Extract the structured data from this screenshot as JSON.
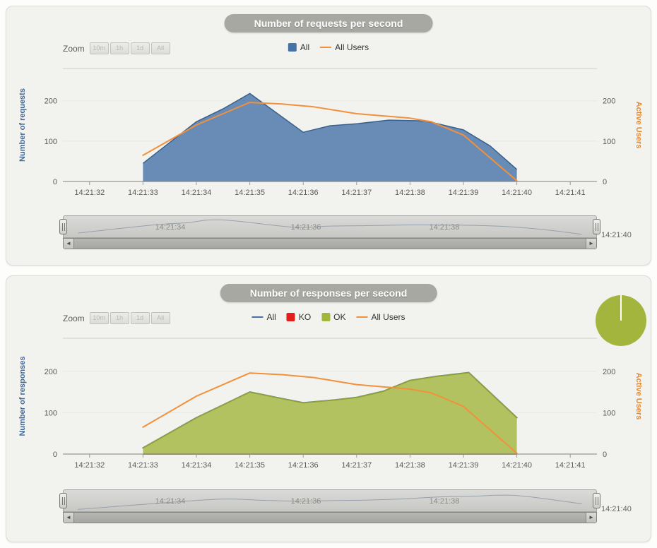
{
  "colors": {
    "accent_blue": "#4572a7",
    "accent_orange": "#f2903b",
    "accent_green": "#a3b53c",
    "accent_red": "#e31e1e",
    "panel_bg": "#f2f2ee",
    "title_pill_bg": "#a8a8a2",
    "nav_line": "#98a1ac"
  },
  "icons": {
    "scroll_left": "◄",
    "scroll_right": "►"
  },
  "zoom": {
    "label": "Zoom",
    "buttons": [
      "10m",
      "1h",
      "1d",
      "All"
    ]
  },
  "panels": [
    {
      "name": "requests",
      "navigator": {
        "labels": [
          "14:21:34",
          "14:21:36",
          "14:21:38"
        ],
        "right_label": "14:21:40"
      }
    },
    {
      "name": "responses",
      "navigator": {
        "labels": [
          "14:21:34",
          "14:21:36",
          "14:21:38"
        ],
        "right_label": "14:21:40"
      }
    }
  ],
  "chart_data": [
    {
      "type": "area",
      "title": "Number of requests per second",
      "ylabel_left": "Number of requests",
      "ylabel_right": "Active Users",
      "x_ticks": [
        "14:21:32",
        "14:21:33",
        "14:21:34",
        "14:21:35",
        "14:21:36",
        "14:21:37",
        "14:21:38",
        "14:21:39",
        "14:21:40",
        "14:21:41"
      ],
      "yticks": [
        0,
        100,
        200
      ],
      "ylim": [
        0,
        280
      ],
      "legend_position": "top",
      "grid": true,
      "series": [
        {
          "name": "All",
          "type": "area",
          "color": "#4572a7",
          "stroke": "#38608f",
          "x_seconds": [
            33,
            34,
            34.5,
            35,
            36,
            36.5,
            37,
            37.6,
            38.3,
            39,
            39.5,
            40
          ],
          "values": [
            45,
            148,
            180,
            218,
            122,
            138,
            143,
            152,
            150,
            128,
            88,
            30
          ]
        },
        {
          "name": "All Users",
          "type": "line",
          "color": "#f2903b",
          "x_seconds": [
            33,
            34,
            35,
            35.6,
            36.2,
            37,
            38,
            38.4,
            39,
            40
          ],
          "values": [
            65,
            140,
            196,
            192,
            185,
            168,
            157,
            148,
            115,
            2
          ]
        }
      ]
    },
    {
      "type": "area",
      "title": "Number of responses per second",
      "ylabel_left": "Number of responses",
      "ylabel_right": "Active Users",
      "x_ticks": [
        "14:21:32",
        "14:21:33",
        "14:21:34",
        "14:21:35",
        "14:21:36",
        "14:21:37",
        "14:21:38",
        "14:21:39",
        "14:21:40",
        "14:21:41"
      ],
      "yticks": [
        0,
        100,
        200
      ],
      "ylim": [
        0,
        280
      ],
      "legend_position": "top",
      "grid": true,
      "series": [
        {
          "name": "All",
          "type": "line",
          "color": "#4572a7",
          "x_seconds": [
            33,
            34,
            35,
            35.5,
            36,
            36.6,
            37,
            37.5,
            38,
            38.5,
            39.1,
            40
          ],
          "values": [
            15,
            88,
            150,
            137,
            124,
            131,
            137,
            152,
            178,
            188,
            197,
            88
          ]
        },
        {
          "name": "KO",
          "type": "area",
          "color": "#e31e1e",
          "stroke": "#c01818",
          "x_seconds": [
            33,
            40
          ],
          "values": [
            0,
            0
          ]
        },
        {
          "name": "OK",
          "type": "area",
          "color": "#a3b53c",
          "stroke": "#8fa133",
          "x_seconds": [
            33,
            34,
            35,
            35.5,
            36,
            36.6,
            37,
            37.5,
            38,
            38.5,
            39.1,
            40
          ],
          "values": [
            15,
            88,
            150,
            137,
            124,
            131,
            137,
            152,
            178,
            188,
            197,
            88
          ]
        },
        {
          "name": "All Users",
          "type": "line",
          "color": "#f2903b",
          "x_seconds": [
            33,
            34,
            35,
            35.6,
            36.2,
            37,
            38,
            38.4,
            39,
            40
          ],
          "values": [
            65,
            140,
            196,
            192,
            185,
            168,
            157,
            148,
            115,
            2
          ]
        }
      ],
      "pie": {
        "slices": [
          {
            "label": "OK",
            "percent": 100,
            "color": "#a3b53c"
          }
        ]
      }
    }
  ]
}
